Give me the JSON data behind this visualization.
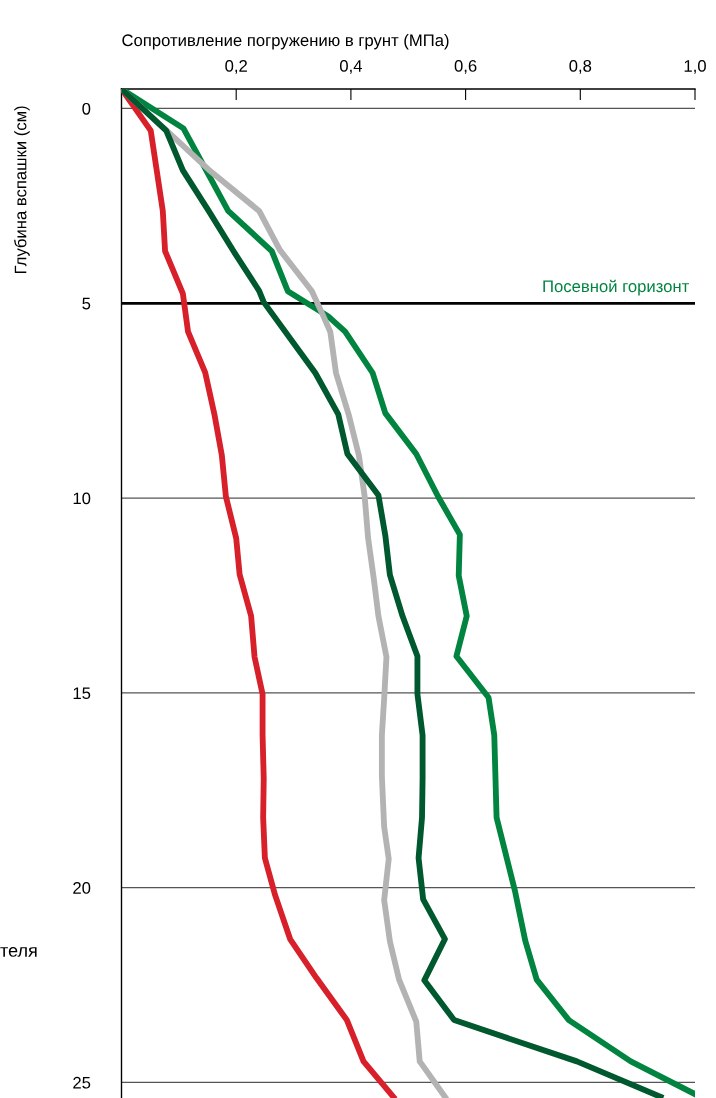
{
  "chart_data": {
    "type": "line",
    "xlabel": "Сопротивление погружению в грунт (МПа)",
    "ylabel": "Глубина вспашки (см)",
    "annotations": [
      "теля"
    ],
    "xlim": [
      0,
      1.0
    ],
    "xticks": [
      {
        "value": 0.2,
        "label": "0,2"
      },
      {
        "value": 0.4,
        "label": "0,4"
      },
      {
        "value": 0.6,
        "label": "0,6"
      },
      {
        "value": 0.8,
        "label": "0,8"
      },
      {
        "value": 1.0,
        "label": "1,0"
      }
    ],
    "ylim": [
      25.4,
      -0.5
    ],
    "yticks": [
      0,
      5,
      10,
      15,
      20,
      25
    ],
    "grid": "y",
    "legend": false,
    "marker": "none",
    "line_style": "solid",
    "ref_lines": [
      {
        "axis": "y",
        "value": 5,
        "label": "Посевной горизонт",
        "color": "#000000"
      }
    ],
    "series": [
      {
        "color": "#d7202a",
        "x": [
          0,
          0.051,
          0.072,
          0.076,
          0.107,
          0.116,
          0.146,
          0.162,
          0.175,
          0.182,
          0.2,
          0.206,
          0.226,
          0.232,
          0.246,
          0.246,
          0.248,
          0.247,
          0.25,
          0.268,
          0.294,
          0.34,
          0.393,
          0.422,
          0.474
        ],
        "values": [
          -0.5,
          0.57,
          2.63,
          3.66,
          4.75,
          5.73,
          6.78,
          7.85,
          8.91,
          9.96,
          11.03,
          11.96,
          13.03,
          14.08,
          15.03,
          16.09,
          17.2,
          18.2,
          19.24,
          20.2,
          21.32,
          22.32,
          23.4,
          24.46,
          25.37
        ]
      },
      {
        "color": "#00843f",
        "x": [
          0,
          0.108,
          0.186,
          0.262,
          0.29,
          0.36,
          0.39,
          0.438,
          0.46,
          0.514,
          0.552,
          0.59,
          0.588,
          0.602,
          0.584,
          0.64,
          0.65,
          0.654,
          0.686,
          0.704,
          0.724,
          0.78,
          0.888,
          1.0
        ],
        "values": [
          -0.5,
          0.51,
          2.63,
          3.66,
          4.69,
          5.33,
          5.73,
          6.79,
          7.82,
          8.87,
          9.96,
          10.94,
          11.99,
          13.03,
          14.06,
          15.12,
          16.09,
          18.2,
          20.08,
          21.36,
          22.36,
          23.4,
          24.46,
          25.3
        ]
      },
      {
        "color": "#b3b3b3",
        "x": [
          0,
          0.1,
          0.152,
          0.24,
          0.276,
          0.332,
          0.352,
          0.364,
          0.374,
          0.396,
          0.414,
          0.424,
          0.43,
          0.44,
          0.448,
          0.462,
          0.458,
          0.454,
          0.454,
          0.458,
          0.466,
          0.458,
          0.468,
          0.484,
          0.514,
          0.52,
          0.564
        ],
        "values": [
          -0.5,
          0.86,
          1.57,
          2.63,
          3.63,
          4.69,
          5.33,
          5.73,
          6.79,
          7.85,
          8.91,
          9.96,
          11.03,
          12.08,
          13.03,
          14.08,
          15.14,
          16.09,
          17.14,
          18.44,
          19.26,
          20.32,
          21.38,
          22.36,
          23.44,
          24.46,
          25.37
        ]
      },
      {
        "color": "#00582f",
        "x": [
          0,
          0.078,
          0.107,
          0.152,
          0.196,
          0.24,
          0.248,
          0.338,
          0.378,
          0.394,
          0.448,
          0.46,
          0.468,
          0.49,
          0.516,
          0.516,
          0.525,
          0.525,
          0.524,
          0.518,
          0.526,
          0.564,
          0.528,
          0.58,
          0.794,
          0.94
        ],
        "values": [
          -0.5,
          0.57,
          1.59,
          2.63,
          3.68,
          4.68,
          4.97,
          6.79,
          7.85,
          8.87,
          9.93,
          10.96,
          11.97,
          13.03,
          14.06,
          15.03,
          16.09,
          17.2,
          18.2,
          19.24,
          20.3,
          21.32,
          22.38,
          23.4,
          24.46,
          25.37
        ]
      }
    ]
  }
}
